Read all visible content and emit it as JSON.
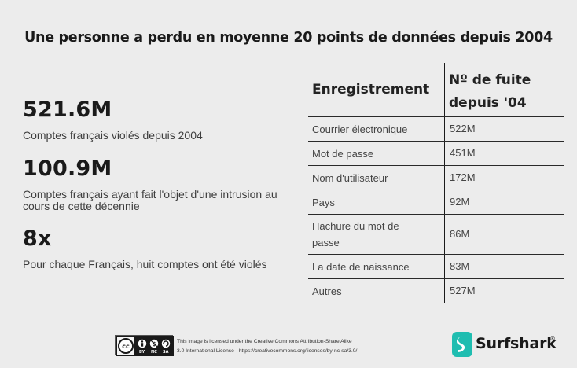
{
  "title": "Une personne a perdu en moyenne 20 points de données depuis 2004",
  "stats": [
    {
      "value": "521.6M",
      "desc": "Comptes français violés depuis 2004"
    },
    {
      "value": "100.9M",
      "desc": "Comptes français ayant fait l'objet d'une intrusion au cours de cette décennie"
    },
    {
      "value": "8x",
      "desc": "Pour chaque Français, huit comptes ont été violés"
    }
  ],
  "table": {
    "headers": [
      "Enregistrement",
      "Nº de fuite depuis '04"
    ],
    "rows": [
      {
        "label": "Courrier électronique",
        "value": "522M"
      },
      {
        "label": "Mot de passe",
        "value": "451M"
      },
      {
        "label": "Nom d'utilisateur",
        "value": "172M"
      },
      {
        "label": "Pays",
        "value": "92M"
      },
      {
        "label": "Hachure du mot de passe",
        "value": "86M"
      },
      {
        "label": "La date de naissance",
        "value": "83M"
      },
      {
        "label": "Autres",
        "value": "527M"
      }
    ]
  },
  "footer": {
    "license_line1": "This image is licensed under the Creative Commons Attribution-Share Alike",
    "license_line2": "3.0 International License - https://creativecommons.org/licenses/by-nc-sa/3.0/",
    "badge_labels": [
      "BY",
      "NC",
      "SA"
    ],
    "brand": "Surfshark",
    "brand_mark": "®",
    "brand_color": "#1fbdb0"
  }
}
